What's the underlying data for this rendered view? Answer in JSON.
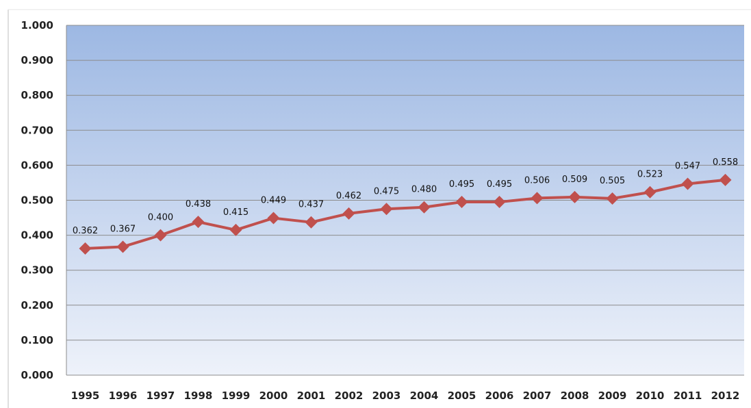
{
  "chart_data": {
    "type": "line",
    "categories": [
      "1995",
      "1996",
      "1997",
      "1998",
      "1999",
      "2000",
      "2001",
      "2002",
      "2003",
      "2004",
      "2005",
      "2006",
      "2007",
      "2008",
      "2009",
      "2010",
      "2011",
      "2012"
    ],
    "series": [
      {
        "values": [
          0.362,
          0.367,
          0.4,
          0.438,
          0.415,
          0.449,
          0.437,
          0.462,
          0.475,
          0.48,
          0.495,
          0.495,
          0.506,
          0.509,
          0.505,
          0.523,
          0.547,
          0.558
        ],
        "data_labels": [
          "0.362",
          "0.367",
          "0.400",
          "0.438",
          "0.415",
          "0.449",
          "0.437",
          "0.462",
          "0.475",
          "0.480",
          "0.495",
          "0.495",
          "0.506",
          "0.509",
          "0.505",
          "0.523",
          "0.547",
          "0.558"
        ]
      }
    ],
    "y_ticks": [
      "0.000",
      "0.100",
      "0.200",
      "0.300",
      "0.400",
      "0.500",
      "0.600",
      "0.700",
      "0.800",
      "0.900",
      "1.000"
    ],
    "ylim": [
      0,
      1
    ],
    "grid": true,
    "legend": "none",
    "colors": {
      "line": "#c0504d",
      "marker": "#c0504d",
      "plot_top": "#9db8e3",
      "plot_bottom": "#eef2fa",
      "gridline": "#8c8c8c"
    }
  }
}
